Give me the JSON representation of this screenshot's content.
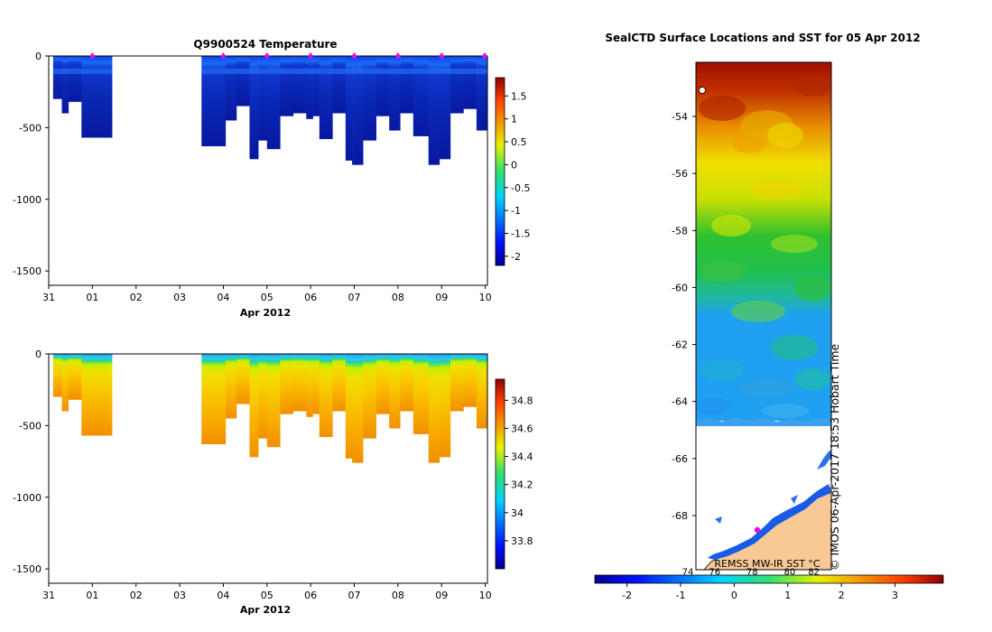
{
  "chart_data": [
    {
      "type": "heatmap",
      "title": "Q9900524  Temperature",
      "xlabel": "Apr 2012",
      "ylabel": "",
      "x_ticks": [
        "31",
        "01",
        "02",
        "03",
        "04",
        "05",
        "06",
        "07",
        "08",
        "09",
        "10"
      ],
      "y_ticks": [
        "0",
        "-500",
        "-1000",
        "-1500"
      ],
      "y_tick_values": [
        0,
        -500,
        -1000,
        -1500
      ],
      "ylim": [
        -1600,
        0
      ],
      "xlim_days": [
        0,
        10.05
      ],
      "colorbar": {
        "range": [
          -2.2,
          1.9
        ],
        "ticks": [
          "1.5",
          "1",
          "0.5",
          "0",
          "-0.5",
          "-1",
          "-1.5",
          "-2"
        ],
        "tick_values": [
          1.5,
          1,
          0.5,
          0,
          -0.5,
          -1,
          -1.5,
          -2
        ]
      },
      "surface_markers_days": [
        1,
        4,
        5,
        6,
        7,
        8,
        9,
        10
      ],
      "profiles": [
        {
          "x0": 0.1,
          "x1": 0.3,
          "depth": 300
        },
        {
          "x0": 0.3,
          "x1": 0.45,
          "depth": 400
        },
        {
          "x0": 0.45,
          "x1": 0.75,
          "depth": 320
        },
        {
          "x0": 0.75,
          "x1": 1.45,
          "depth": 570
        },
        {
          "x0": 3.5,
          "x1": 4.05,
          "depth": 630
        },
        {
          "x0": 4.05,
          "x1": 4.3,
          "depth": 450
        },
        {
          "x0": 4.3,
          "x1": 4.6,
          "depth": 350
        },
        {
          "x0": 4.6,
          "x1": 4.8,
          "depth": 720
        },
        {
          "x0": 4.8,
          "x1": 5.0,
          "depth": 590
        },
        {
          "x0": 5.0,
          "x1": 5.3,
          "depth": 650
        },
        {
          "x0": 5.3,
          "x1": 5.6,
          "depth": 420
        },
        {
          "x0": 5.6,
          "x1": 5.9,
          "depth": 400
        },
        {
          "x0": 5.9,
          "x1": 6.05,
          "depth": 440
        },
        {
          "x0": 6.05,
          "x1": 6.2,
          "depth": 420
        },
        {
          "x0": 6.2,
          "x1": 6.5,
          "depth": 580
        },
        {
          "x0": 6.5,
          "x1": 6.8,
          "depth": 400
        },
        {
          "x0": 6.8,
          "x1": 6.95,
          "depth": 730
        },
        {
          "x0": 6.95,
          "x1": 7.2,
          "depth": 760
        },
        {
          "x0": 7.2,
          "x1": 7.5,
          "depth": 590
        },
        {
          "x0": 7.5,
          "x1": 7.8,
          "depth": 420
        },
        {
          "x0": 7.8,
          "x1": 8.05,
          "depth": 520
        },
        {
          "x0": 8.05,
          "x1": 8.35,
          "depth": 400
        },
        {
          "x0": 8.35,
          "x1": 8.7,
          "depth": 560
        },
        {
          "x0": 8.7,
          "x1": 8.95,
          "depth": 760
        },
        {
          "x0": 8.95,
          "x1": 9.2,
          "depth": 720
        },
        {
          "x0": 9.2,
          "x1": 9.5,
          "depth": 400
        },
        {
          "x0": 9.5,
          "x1": 9.8,
          "depth": 370
        },
        {
          "x0": 9.8,
          "x1": 10.05,
          "depth": 520
        }
      ]
    },
    {
      "type": "heatmap",
      "title": "",
      "xlabel": "Apr 2012",
      "ylabel": "",
      "x_ticks": [
        "31",
        "01",
        "02",
        "03",
        "04",
        "05",
        "06",
        "07",
        "08",
        "09",
        "10"
      ],
      "y_ticks": [
        "0",
        "-500",
        "-1000",
        "-1500"
      ],
      "y_tick_values": [
        0,
        -500,
        -1000,
        -1500
      ],
      "ylim": [
        -1600,
        0
      ],
      "xlim_days": [
        0,
        10.05
      ],
      "colorbar": {
        "range": [
          33.6,
          34.95
        ],
        "ticks": [
          "34.8",
          "34.6",
          "34.4",
          "34.2",
          "34",
          "33.8"
        ],
        "tick_values": [
          34.8,
          34.6,
          34.4,
          34.2,
          34.0,
          33.8
        ]
      }
    },
    {
      "type": "heatmap",
      "title": "SealCTD Surface Locations and SST for 05 Apr 2012",
      "y_ticks": [
        "-54",
        "-56",
        "-58",
        "-60",
        "-62",
        "-64",
        "-66",
        "-68"
      ],
      "y_tick_values": [
        -54,
        -56,
        -58,
        -60,
        -62,
        -64,
        -66,
        -68
      ],
      "ylim": [
        -69.9,
        -52.1
      ],
      "colorbar": {
        "range": [
          -2.6,
          3.9
        ],
        "ticks": [
          "-2",
          "-1",
          "0",
          "1",
          "2",
          "3"
        ],
        "tick_values": [
          -2,
          -1,
          0,
          1,
          2,
          3
        ],
        "overlay_ticks": [
          "74",
          "76",
          "78",
          "80",
          "82"
        ],
        "overlay_tick_values": [
          -1.0,
          -0.5,
          0.2,
          0.9,
          1.35
        ]
      },
      "source_label": "REMSS MW-IR SST °C",
      "credit": "© IMOS 06-Apr-2017 18:53 Hobart Time"
    }
  ],
  "colors": {
    "land": "#f9c995",
    "ice_edge": "#2fa8e0",
    "marker": "#e010e0"
  }
}
